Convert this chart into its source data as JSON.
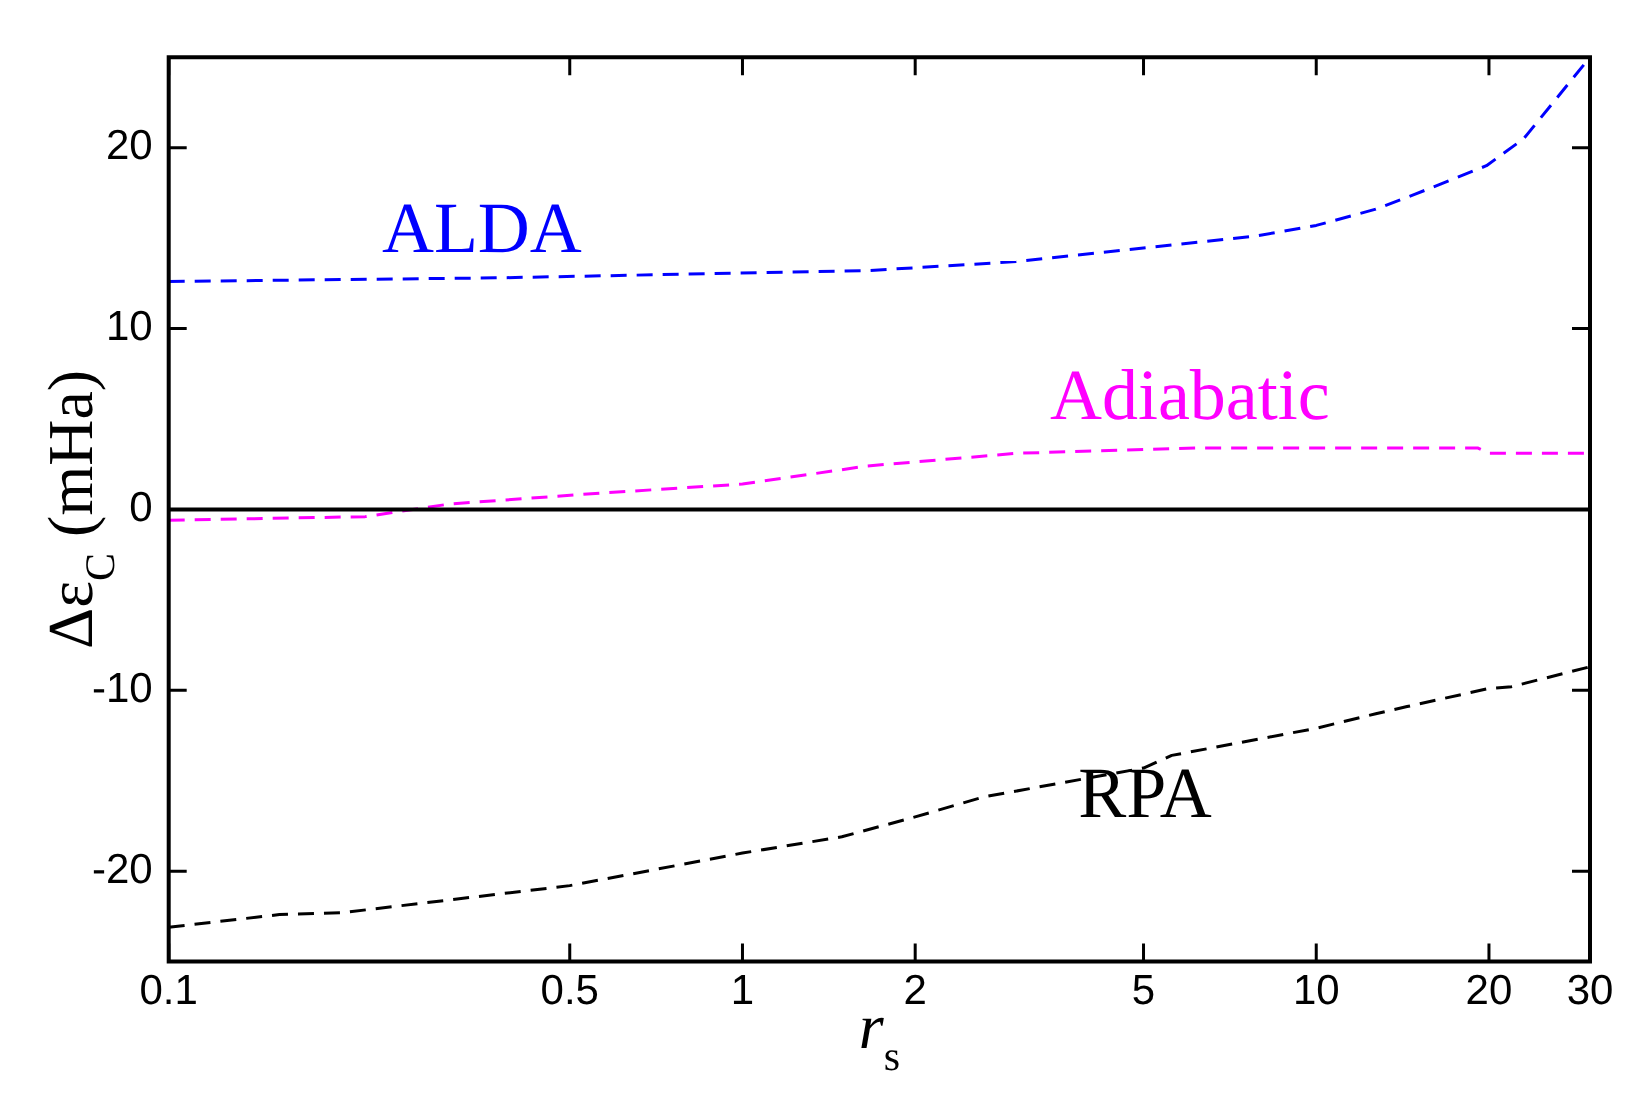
{
  "chart_data": {
    "type": "line",
    "xlabel": "r$_{s}$",
    "ylabel": "Δε$_{C}$ (mHa)",
    "log": "x",
    "xlim": [
      0.1,
      30
    ],
    "xticks": [
      0.1,
      0.5,
      1,
      2,
      5,
      10,
      20,
      30
    ],
    "ylim": [
      -25,
      25
    ],
    "yticks": [
      -20,
      -10,
      0,
      10,
      20
    ],
    "grid": false,
    "legend": false,
    "marker": "none",
    "line_style": "dashed",
    "ref_lines": [
      {
        "axis": "y",
        "value": 0,
        "color": "#000000",
        "line_style": "solid"
      }
    ],
    "series": [
      {
        "name": "ALDA",
        "color": "#0000ff",
        "x": [
          0.1,
          0.371,
          1.65,
          3.0,
          7.8,
          10,
          12.7,
          14.8,
          19.8,
          23,
          30
        ],
        "values": [
          12.6,
          12.8,
          13.2,
          13.7,
          15.1,
          15.7,
          16.6,
          17.4,
          19.0,
          20.5,
          25.0
        ]
      },
      {
        "name": "Adiabatic",
        "color": "#ff00ff",
        "x": [
          0.1,
          0.22,
          0.309,
          0.565,
          1,
          1.65,
          3.0,
          6.2,
          19.1,
          20,
          30
        ],
        "values": [
          -0.6,
          -0.4,
          0.3,
          0.9,
          1.4,
          2.4,
          3.1,
          3.4,
          3.4,
          3.1,
          3.1
        ]
      },
      {
        "name": "RPA",
        "color": "#000000",
        "x": [
          0.1,
          0.156,
          0.2,
          0.5,
          1,
          1.49,
          2,
          2.63,
          5,
          5.6,
          10,
          12.7,
          14.4,
          20,
          21.9,
          30
        ],
        "values": [
          -23.1,
          -22.4,
          -22.3,
          -20.8,
          -19.0,
          -18.1,
          -17.0,
          -15.9,
          -14.3,
          -13.6,
          -12.1,
          -11.3,
          -10.9,
          -9.9,
          -9.8,
          -8.7
        ]
      }
    ]
  }
}
